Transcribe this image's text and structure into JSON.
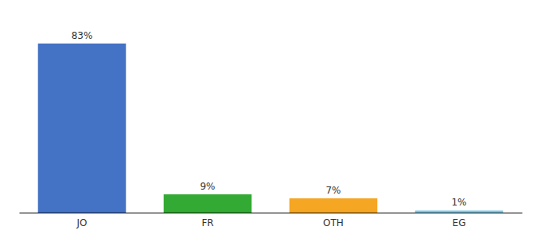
{
  "chart_data": {
    "type": "bar",
    "categories": [
      "JO",
      "FR",
      "OTH",
      "EG"
    ],
    "values": [
      83,
      9,
      7,
      1
    ],
    "value_labels": [
      "83%",
      "9%",
      "7%",
      "1%"
    ],
    "colors": [
      "#4472c4",
      "#33aa33",
      "#f5a623",
      "#7ec8e3"
    ],
    "ylim": [
      0,
      95
    ],
    "data_labels": true,
    "tick_labels": "x",
    "grid": false
  }
}
